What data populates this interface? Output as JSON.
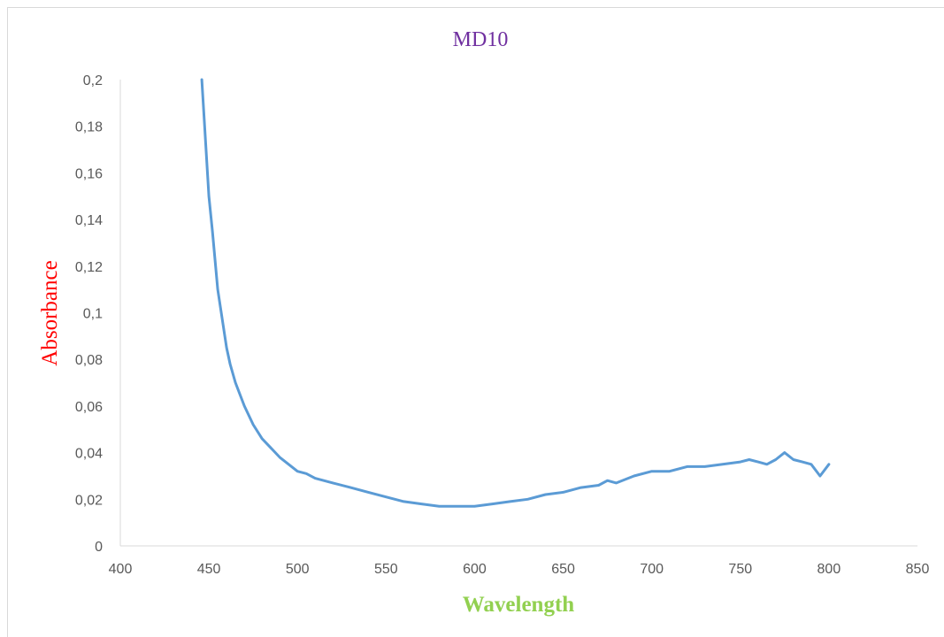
{
  "chart_data": {
    "type": "line",
    "title": "MD10",
    "xlabel": "Wavelength",
    "ylabel": "Absorbance",
    "xlim": [
      400,
      850
    ],
    "ylim": [
      0,
      0.2
    ],
    "x_ticks": [
      400,
      450,
      500,
      550,
      600,
      650,
      700,
      750,
      800,
      850
    ],
    "x_tick_labels": [
      "400",
      "450",
      "500",
      "550",
      "600",
      "650",
      "700",
      "750",
      "800",
      "850"
    ],
    "y_ticks": [
      0,
      0.02,
      0.04,
      0.06,
      0.08,
      0.1,
      0.12,
      0.14,
      0.16,
      0.18,
      0.2
    ],
    "y_tick_labels": [
      "0",
      "0,02",
      "0,04",
      "0,06",
      "0,08",
      "0,1",
      "0,12",
      "0,14",
      "0,16",
      "0,18",
      "0,2"
    ],
    "grid": false,
    "legend": "none",
    "line_color": "#5b9bd5",
    "series": [
      {
        "x": [
          446,
          450,
          452,
          455,
          458,
          460,
          462,
          465,
          470,
          475,
          480,
          485,
          490,
          495,
          500,
          505,
          510,
          520,
          530,
          540,
          550,
          560,
          570,
          580,
          590,
          600,
          610,
          620,
          630,
          640,
          650,
          660,
          670,
          675,
          680,
          690,
          700,
          710,
          720,
          730,
          740,
          750,
          755,
          760,
          765,
          770,
          775,
          780,
          785,
          790,
          795,
          800
        ],
        "y": [
          0.2,
          0.15,
          0.135,
          0.11,
          0.095,
          0.085,
          0.078,
          0.07,
          0.06,
          0.052,
          0.046,
          0.042,
          0.038,
          0.035,
          0.032,
          0.031,
          0.029,
          0.027,
          0.025,
          0.023,
          0.021,
          0.019,
          0.018,
          0.017,
          0.017,
          0.017,
          0.018,
          0.019,
          0.02,
          0.022,
          0.023,
          0.025,
          0.026,
          0.028,
          0.027,
          0.03,
          0.032,
          0.032,
          0.034,
          0.034,
          0.035,
          0.036,
          0.037,
          0.036,
          0.035,
          0.037,
          0.04,
          0.037,
          0.036,
          0.035,
          0.03,
          0.035
        ]
      }
    ]
  }
}
